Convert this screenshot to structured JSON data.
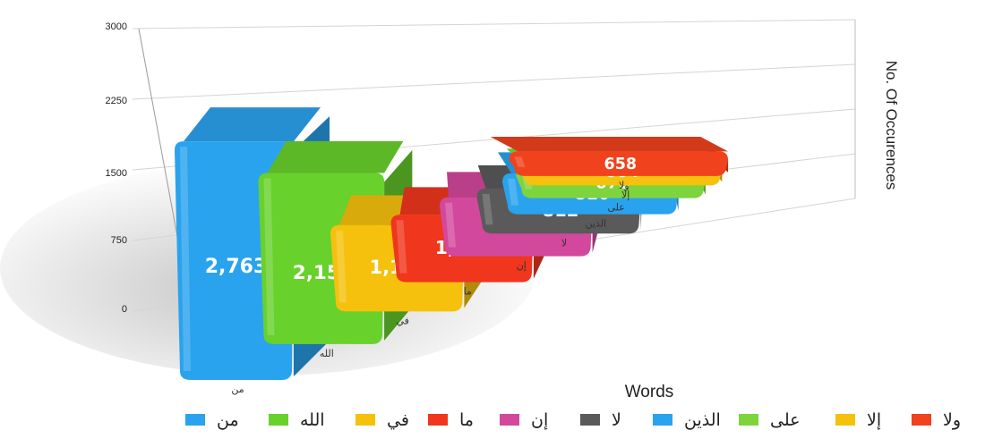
{
  "chart_data": {
    "type": "bar",
    "categories": [
      "من",
      "الله",
      "في",
      "ما",
      "إن",
      "لا",
      "الذين",
      "على",
      "إلا",
      "ولا"
    ],
    "values": [
      2763,
      2153,
      1185,
      1010,
      966,
      812,
      810,
      670,
      664,
      658
    ],
    "data_labels": [
      "2,763",
      "2,153",
      "1,185",
      "1,010",
      "966",
      "812",
      "810",
      "670",
      "664",
      "658"
    ],
    "colors": [
      "#2aa3ee",
      "#68d12c",
      "#f5c10c",
      "#f0361d",
      "#d2489c",
      "#5a5a5a",
      "#2aa3ee",
      "#7ed43c",
      "#f5c10c",
      "#f0421d"
    ],
    "xlabel": "Words",
    "ylabel": "No. Of Occurences",
    "ylim": [
      0,
      3000
    ],
    "yticks": [
      "0",
      "750",
      "1500",
      "2250",
      "3000"
    ],
    "grid": true,
    "legend": "bottom",
    "style": "3d"
  }
}
